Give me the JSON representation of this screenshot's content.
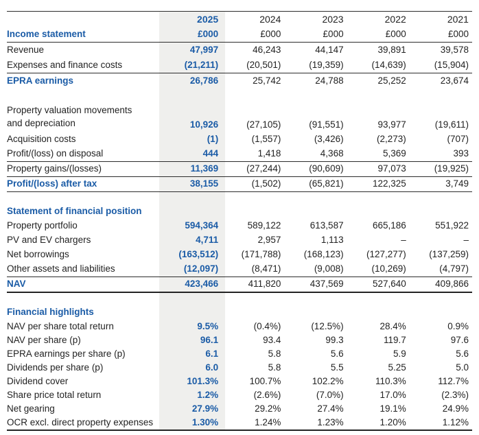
{
  "meta": {
    "accent_blue": "#1a5ba6",
    "highlight_column_bg": "#efefed",
    "rule_color": "#2b2b2b",
    "highlighted_year": "2025"
  },
  "header": {
    "years": [
      "2025",
      "2024",
      "2023",
      "2022",
      "2021"
    ],
    "units": [
      "£000",
      "£000",
      "£000",
      "£000",
      "£000"
    ],
    "income_section_title": "Income statement"
  },
  "income": {
    "rows": [
      {
        "label": "Revenue",
        "values": [
          "47,997",
          "46,243",
          "44,147",
          "39,891",
          "39,578"
        ]
      },
      {
        "label": "Expenses and finance costs",
        "values": [
          "(21,211)",
          "(20,501)",
          "(19,359)",
          "(14,639)",
          "(15,904)"
        ]
      },
      {
        "label": "EPRA earnings",
        "values": [
          "26,786",
          "25,742",
          "24,788",
          "25,252",
          "23,674"
        ]
      },
      {
        "label": "Property valuation movements and depreciation",
        "values": [
          "10,926",
          "(27,105)",
          "(91,551)",
          "93,977",
          "(19,611)"
        ]
      },
      {
        "label": "Acquisition costs",
        "values": [
          "(1)",
          "(1,557)",
          "(3,426)",
          "(2,273)",
          "(707)"
        ]
      },
      {
        "label": "Profit/(loss) on disposal",
        "values": [
          "444",
          "1,418",
          "4,368",
          "5,369",
          "393"
        ]
      },
      {
        "label": "Property gains/(losses)",
        "values": [
          "11,369",
          "(27,244)",
          "(90,609)",
          "97,073",
          "(19,925)"
        ]
      },
      {
        "label": "Profit/(loss) after tax",
        "values": [
          "38,155",
          "(1,502)",
          "(65,821)",
          "122,325",
          "3,749"
        ]
      }
    ]
  },
  "financial_position": {
    "section_title": "Statement of financial position",
    "rows": [
      {
        "label": "Property portfolio",
        "values": [
          "594,364",
          "589,122",
          "613,587",
          "665,186",
          "551,922"
        ]
      },
      {
        "label": "PV and EV chargers",
        "values": [
          "4,711",
          "2,957",
          "1,113",
          "–",
          "–"
        ]
      },
      {
        "label": "Net borrowings",
        "values": [
          "(163,512)",
          "(171,788)",
          "(168,123)",
          "(127,277)",
          "(137,259)"
        ]
      },
      {
        "label": "Other assets and liabilities",
        "values": [
          "(12,097)",
          "(8,471)",
          "(9,008)",
          "(10,269)",
          "(4,797)"
        ]
      },
      {
        "label": "NAV",
        "values": [
          "423,466",
          "411,820",
          "437,569",
          "527,640",
          "409,866"
        ]
      }
    ]
  },
  "financial_highlights": {
    "section_title": "Financial highlights",
    "rows": [
      {
        "label": "NAV per share total return",
        "values": [
          "9.5%",
          "(0.4%)",
          "(12.5%)",
          "28.4%",
          "0.9%"
        ]
      },
      {
        "label": "NAV per share (p)",
        "values": [
          "96.1",
          "93.4",
          "99.3",
          "119.7",
          "97.6"
        ]
      },
      {
        "label": "EPRA earnings per share (p)",
        "values": [
          "6.1",
          "5.8",
          "5.6",
          "5.9",
          "5.6"
        ]
      },
      {
        "label": "Dividends per share (p)",
        "values": [
          "6.0",
          "5.8",
          "5.5",
          "5.25",
          "5.0"
        ]
      },
      {
        "label": "Dividend cover",
        "values": [
          "101.3%",
          "100.7%",
          "102.2%",
          "110.3%",
          "112.7%"
        ]
      },
      {
        "label": "Share price total return",
        "values": [
          "1.2%",
          "(2.6%)",
          "(7.0%)",
          "17.0%",
          "(2.3%)"
        ]
      },
      {
        "label": "Net gearing",
        "values": [
          "27.9%",
          "29.2%",
          "27.4%",
          "19.1%",
          "24.9%"
        ]
      },
      {
        "label": "OCR excl. direct property expenses",
        "values": [
          "1.30%",
          "1.24%",
          "1.23%",
          "1.20%",
          "1.12%"
        ]
      }
    ]
  }
}
